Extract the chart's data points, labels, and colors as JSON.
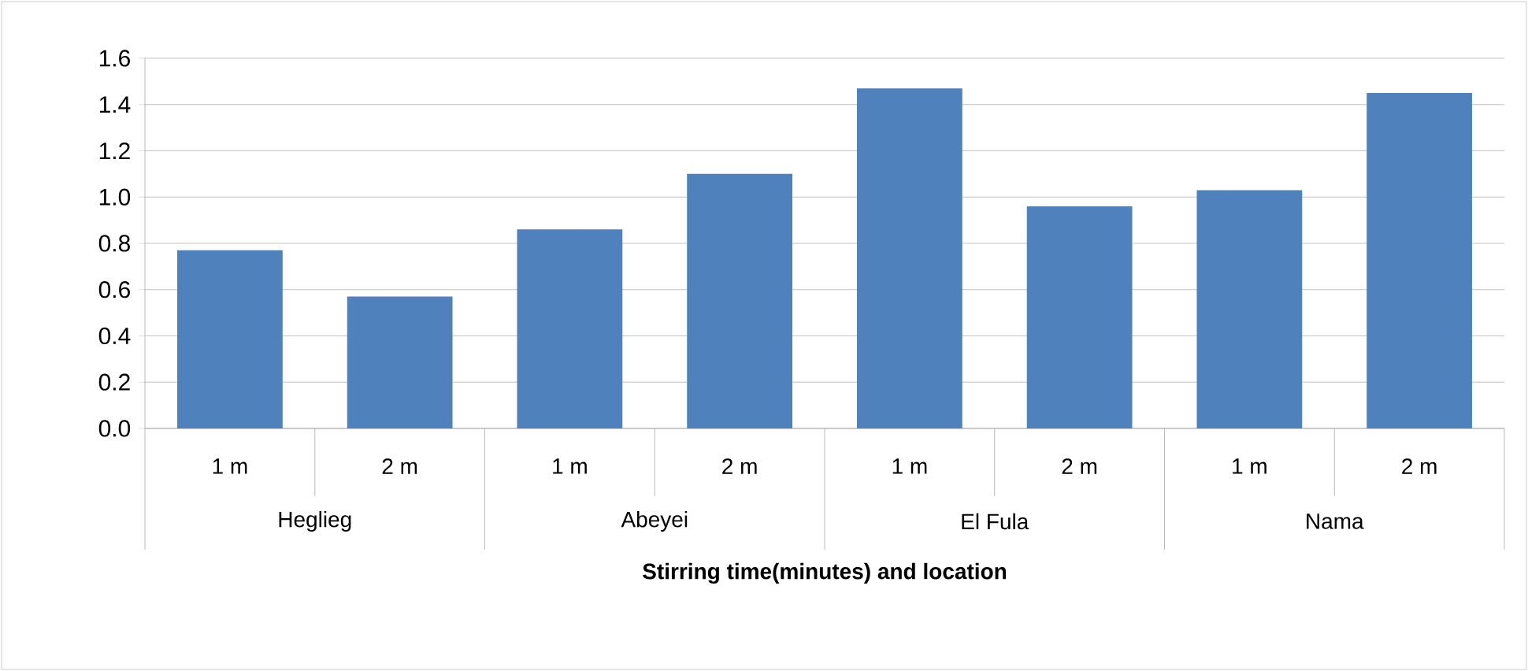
{
  "chart_data": {
    "type": "bar",
    "categories": [
      "1 m",
      "2 m",
      "1 m",
      "2 m",
      "1 m",
      "2 m",
      "1 m",
      "2 m"
    ],
    "values": [
      0.77,
      0.57,
      0.86,
      1.1,
      1.47,
      0.96,
      1.03,
      1.45
    ],
    "color": "#4f81bd",
    "xlabel": "Stirring time(minutes) and location",
    "annotations": [
      "Heglieg",
      "Abeyei",
      "El Fula",
      "Nama"
    ],
    "ylim": [
      0,
      1.6
    ],
    "yticks": [
      {
        "value": 0,
        "label": "0.0"
      },
      0.2,
      0.4,
      0.6,
      0.8,
      {
        "value": 1,
        "label": "1.0"
      },
      1.2,
      1.4,
      1.6
    ],
    "grid": "y"
  }
}
